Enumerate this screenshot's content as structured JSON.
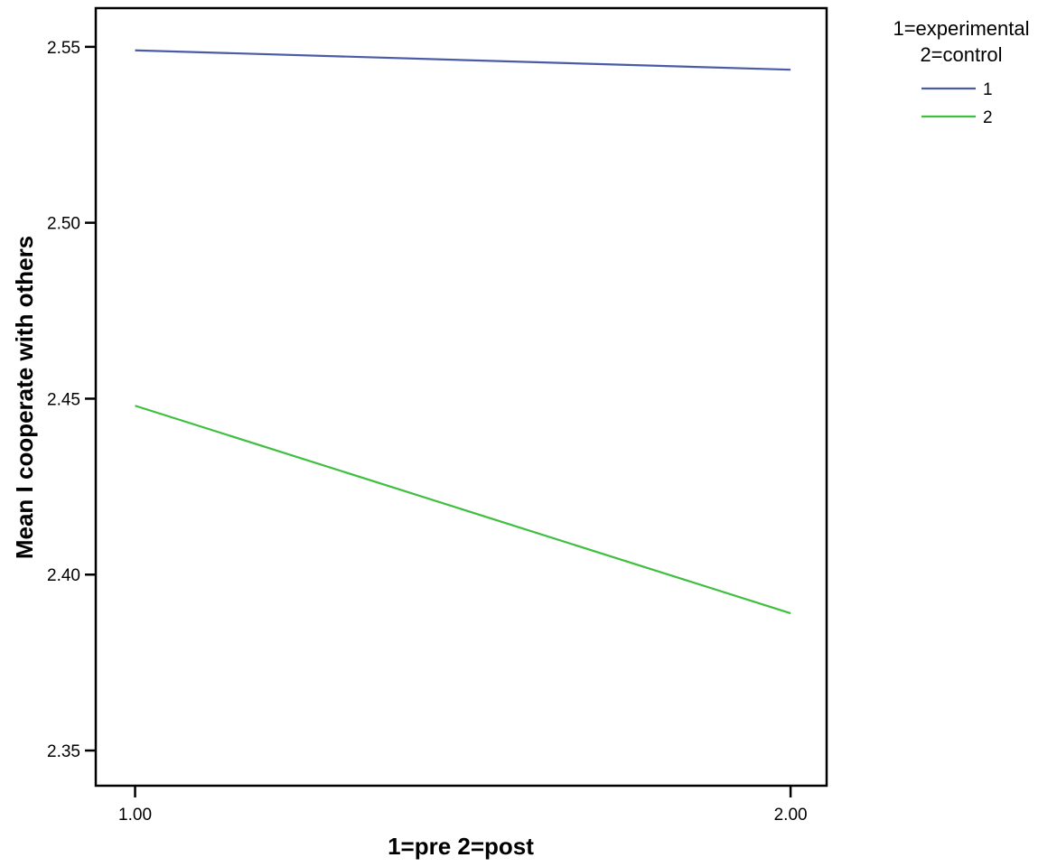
{
  "chart_data": {
    "type": "line",
    "x": [
      1.0,
      2.0
    ],
    "x_tick_labels": [
      "1.00",
      "2.00"
    ],
    "series": [
      {
        "name": "1",
        "values": [
          2.549,
          2.5435
        ],
        "color": "#4a5ba8"
      },
      {
        "name": "2",
        "values": [
          2.448,
          2.389
        ],
        "color": "#3fbf3f"
      }
    ],
    "xlabel": "1=pre 2=post",
    "ylabel": "Mean I cooperate with others",
    "y_ticks": [
      2.35,
      2.4,
      2.45,
      2.5,
      2.55
    ],
    "y_tick_labels": [
      "2.35",
      "2.40",
      "2.45",
      "2.50",
      "2.55"
    ],
    "ylim": [
      2.34,
      2.561
    ],
    "xlim": [
      0.94,
      2.055
    ],
    "grid": false,
    "legend": {
      "title_line1": "1=experimental",
      "title_line2": "2=control",
      "placement": "top-right, outside plot"
    }
  }
}
